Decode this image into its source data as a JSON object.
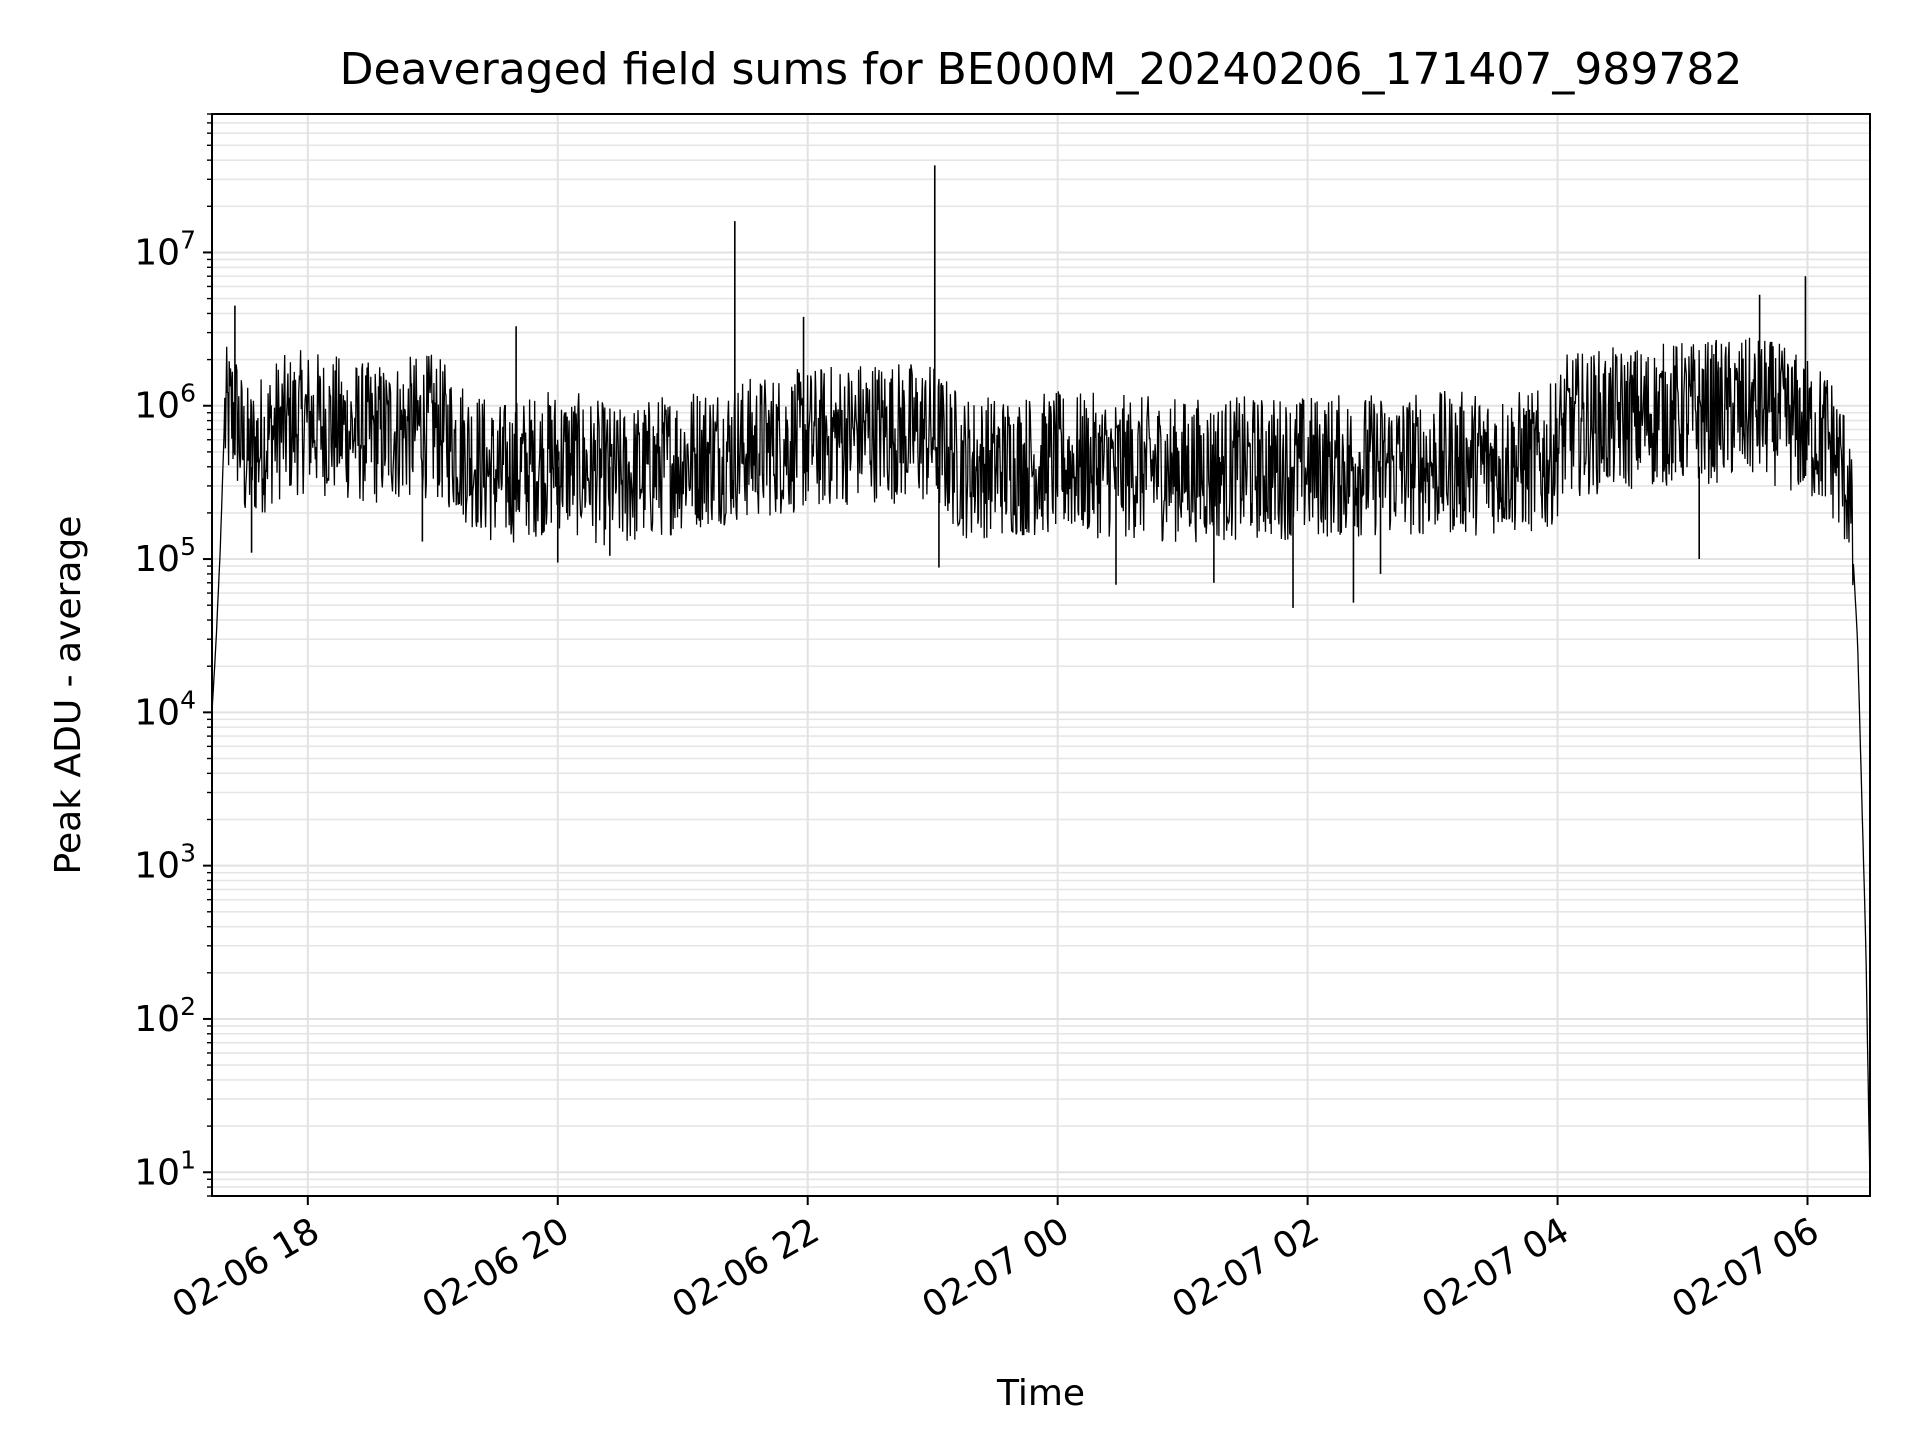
{
  "chart_data": {
    "type": "line",
    "title": "Deaveraged field sums for BE000M_20240206_171407_989782",
    "xlabel": "Time",
    "ylabel": "Peak ADU - average",
    "y_scale": "log",
    "ylim": [
      7,
      80000000
    ],
    "xlim": [
      "2024-02-06 17:14",
      "2024-02-07 06:30"
    ],
    "grid": true,
    "x_ticks": [
      {
        "value": "2024-02-06 18:00",
        "label": "02-06 18"
      },
      {
        "value": "2024-02-06 20:00",
        "label": "02-06 20"
      },
      {
        "value": "2024-02-06 22:00",
        "label": "02-06 22"
      },
      {
        "value": "2024-02-07 00:00",
        "label": "02-07 00"
      },
      {
        "value": "2024-02-07 02:00",
        "label": "02-07 02"
      },
      {
        "value": "2024-02-07 04:00",
        "label": "02-07 04"
      },
      {
        "value": "2024-02-07 06:00",
        "label": "02-07 06"
      }
    ],
    "y_ticks": [
      {
        "value": 10,
        "base": "10",
        "exp": "1"
      },
      {
        "value": 100,
        "base": "10",
        "exp": "2"
      },
      {
        "value": 1000,
        "base": "10",
        "exp": "3"
      },
      {
        "value": 10000,
        "base": "10",
        "exp": "4"
      },
      {
        "value": 100000,
        "base": "10",
        "exp": "5"
      },
      {
        "value": 1000000,
        "base": "10",
        "exp": "6"
      },
      {
        "value": 10000000,
        "base": "10",
        "exp": "7"
      }
    ],
    "series": [
      {
        "color": "#000000",
        "points": [
          [
            "2024-02-06 17:14",
            10000
          ],
          [
            "2024-02-06 17:16",
            30000
          ],
          [
            "2024-02-06 17:18",
            120000
          ],
          [
            "2024-02-06 17:20",
            800000
          ],
          [
            "2024-02-06 17:25",
            900000
          ],
          [
            "2024-02-06 17:30",
            450000
          ],
          [
            "2024-02-06 17:45",
            700000
          ],
          [
            "2024-02-06 18:00",
            800000
          ],
          [
            "2024-02-06 18:30",
            650000
          ],
          [
            "2024-02-06 19:00",
            750000
          ],
          [
            "2024-02-06 19:30",
            350000
          ],
          [
            "2024-02-06 20:00",
            450000
          ],
          [
            "2024-02-06 20:30",
            330000
          ],
          [
            "2024-02-06 21:00",
            450000
          ],
          [
            "2024-02-06 21:30",
            520000
          ],
          [
            "2024-02-06 22:00",
            600000
          ],
          [
            "2024-02-06 22:30",
            700000
          ],
          [
            "2024-02-06 23:00",
            650000
          ],
          [
            "2024-02-06 23:15",
            400000
          ],
          [
            "2024-02-07 00:00",
            420000
          ],
          [
            "2024-02-07 01:00",
            380000
          ],
          [
            "2024-02-07 02:00",
            400000
          ],
          [
            "2024-02-07 03:00",
            420000
          ],
          [
            "2024-02-07 03:55",
            430000
          ],
          [
            "2024-02-07 04:05",
            750000
          ],
          [
            "2024-02-07 05:00",
            900000
          ],
          [
            "2024-02-07 05:40",
            950000
          ],
          [
            "2024-02-07 06:10",
            600000
          ],
          [
            "2024-02-07 06:20",
            300000
          ],
          [
            "2024-02-07 06:24",
            30000
          ],
          [
            "2024-02-07 06:26",
            3000
          ],
          [
            "2024-02-07 06:28",
            300
          ],
          [
            "2024-02-07 06:30",
            8
          ]
        ],
        "peaks": [
          [
            "2024-02-06 17:25",
            4500000
          ],
          [
            "2024-02-06 19:40",
            3300000
          ],
          [
            "2024-02-06 21:25",
            16000000
          ],
          [
            "2024-02-06 21:58",
            3800000
          ],
          [
            "2024-02-06 23:01",
            37000000
          ],
          [
            "2024-02-07 05:37",
            5300000
          ],
          [
            "2024-02-07 05:59",
            7000000
          ]
        ],
        "troughs": [
          [
            "2024-02-06 17:33",
            110000
          ],
          [
            "2024-02-06 18:55",
            130000
          ],
          [
            "2024-02-06 20:00",
            95000
          ],
          [
            "2024-02-06 20:25",
            105000
          ],
          [
            "2024-02-06 23:03",
            88000
          ],
          [
            "2024-02-07 00:28",
            68000
          ],
          [
            "2024-02-07 01:15",
            70000
          ],
          [
            "2024-02-07 01:53",
            48000
          ],
          [
            "2024-02-07 02:22",
            52000
          ],
          [
            "2024-02-07 02:35",
            80000
          ],
          [
            "2024-02-07 05:08",
            100000
          ]
        ]
      }
    ]
  }
}
